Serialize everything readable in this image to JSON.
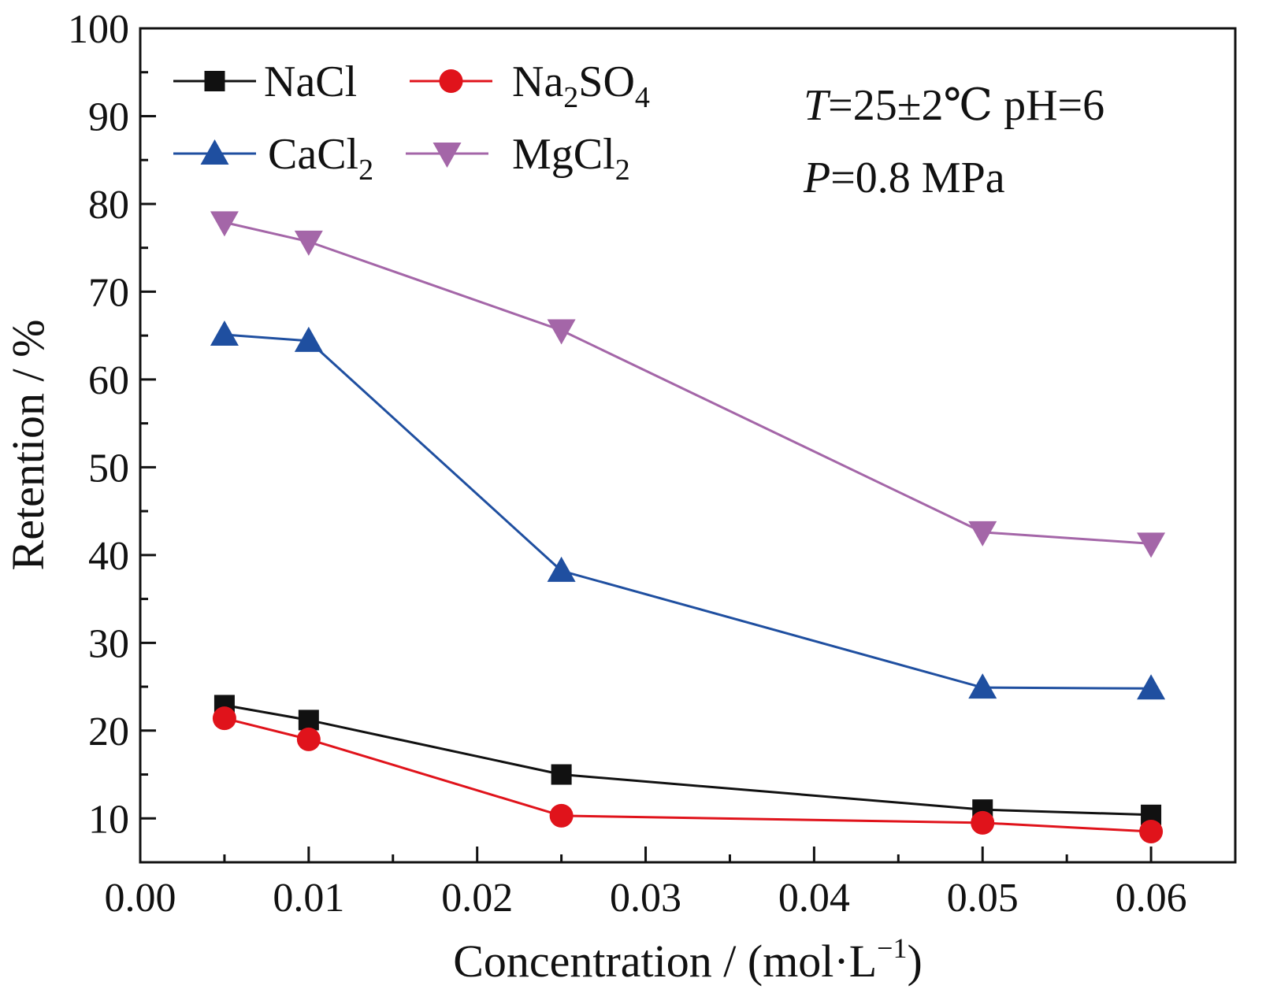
{
  "chart_data": {
    "type": "line",
    "title": "",
    "xlabel": "Concentration / (mol·L",
    "xlabel_sup": "−1",
    "xlabel_end": ")",
    "ylabel": "Retention / %",
    "xlim": [
      0.0,
      0.065
    ],
    "ylim": [
      5,
      100
    ],
    "x_ticks": [
      0.0,
      0.01,
      0.02,
      0.03,
      0.04,
      0.05,
      0.06
    ],
    "x_tick_labels": [
      "0.00",
      "0.01",
      "0.02",
      "0.03",
      "0.04",
      "0.05",
      "0.06"
    ],
    "y_ticks": [
      10,
      20,
      30,
      40,
      50,
      60,
      70,
      80,
      90,
      100
    ],
    "y_tick_labels": [
      "10",
      "20",
      "30",
      "40",
      "50",
      "60",
      "70",
      "80",
      "90",
      "100"
    ],
    "grid": false,
    "legend_position": "top-left",
    "series": [
      {
        "name": "NaCl",
        "name_main": "NaCl",
        "name_sub": "",
        "name_main2": "",
        "name_sub2": "",
        "color": "#111111",
        "marker": "square",
        "x": [
          0.005,
          0.01,
          0.025,
          0.05,
          0.06
        ],
        "y": [
          22.9,
          21.2,
          15.0,
          11.0,
          10.4
        ]
      },
      {
        "name": "Na2SO4",
        "name_main": "Na",
        "name_sub": "2",
        "name_main2": "SO",
        "name_sub2": "4",
        "color": "#e0131b",
        "marker": "circle",
        "x": [
          0.005,
          0.01,
          0.025,
          0.05,
          0.06
        ],
        "y": [
          21.4,
          19.0,
          10.3,
          9.5,
          8.5
        ]
      },
      {
        "name": "CaCl2",
        "name_main": "CaCl",
        "name_sub": "2",
        "name_main2": "",
        "name_sub2": "",
        "color": "#1f4fa0",
        "marker": "triangle-up",
        "x": [
          0.005,
          0.01,
          0.025,
          0.05,
          0.06
        ],
        "y": [
          65.1,
          64.4,
          38.2,
          24.9,
          24.8
        ]
      },
      {
        "name": "MgCl2",
        "name_main": "MgCl",
        "name_sub": "2",
        "name_main2": "",
        "name_sub2": "",
        "color": "#a466a8",
        "marker": "triangle-down",
        "x": [
          0.005,
          0.01,
          0.025,
          0.05,
          0.06
        ],
        "y": [
          77.9,
          75.7,
          65.6,
          42.6,
          41.3
        ]
      }
    ],
    "annotations": {
      "line1_var": "T",
      "line1_rest": "=25±2℃ pH=6",
      "line2_var": "P",
      "line2_rest": "=0.8 MPa"
    }
  }
}
